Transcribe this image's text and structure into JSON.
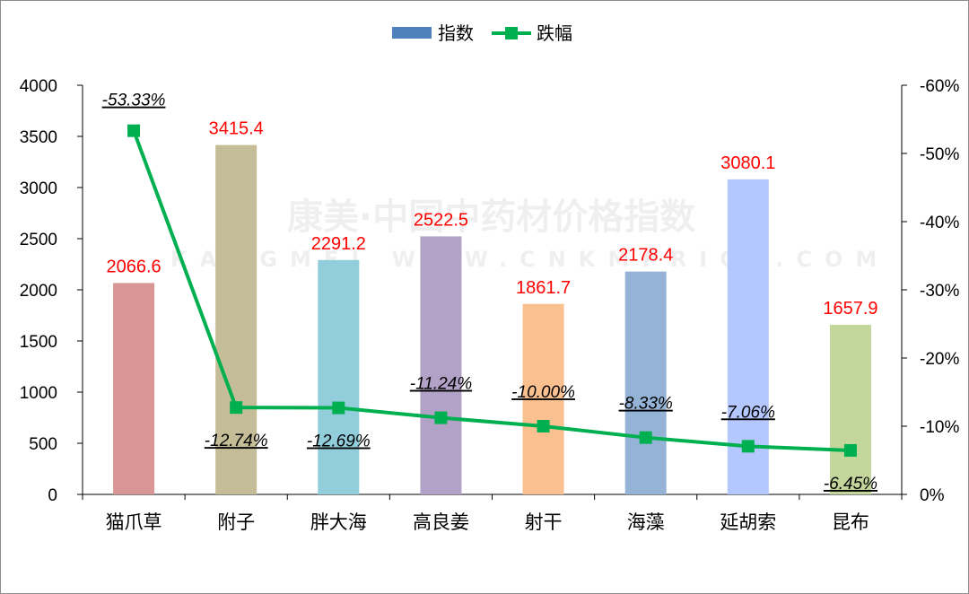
{
  "chart_data": {
    "type": "bar",
    "categories": [
      "猫爪草",
      "附子",
      "胖大海",
      "高良姜",
      "射干",
      "海藻",
      "延胡索",
      "昆布"
    ],
    "series": [
      {
        "name": "指数",
        "type": "bar",
        "axis": "left",
        "values": [
          2066.6,
          3415.4,
          2291.2,
          2522.5,
          1861.7,
          2178.4,
          3080.1,
          1657.9
        ],
        "labels": [
          "2066.6",
          "3415.4",
          "2291.2",
          "2522.5",
          "1861.7",
          "2178.4",
          "3080.1",
          "1657.9"
        ]
      },
      {
        "name": "跌幅",
        "type": "line",
        "axis": "right",
        "values": [
          -53.33,
          -12.74,
          -12.69,
          -11.24,
          -10.0,
          -8.33,
          -7.06,
          -6.45
        ],
        "labels": [
          "-53.33%",
          "-12.74%",
          "-12.69%",
          "-11.24%",
          "-10.00%",
          "-8.33%",
          "-7.06%",
          "-6.45%"
        ],
        "color": "#00b050"
      }
    ],
    "bar_colors": [
      "#d99694",
      "#c4bd97",
      "#92cddc",
      "#b3a2c7",
      "#fac090",
      "#95b3d7",
      "#b4c7ff",
      "#c3d69b"
    ],
    "y_left": {
      "min": 0,
      "max": 4000,
      "ticks": [
        "0",
        "500",
        "1000",
        "1500",
        "2000",
        "2500",
        "3000",
        "3500",
        "4000"
      ]
    },
    "y_right": {
      "min": 0,
      "max": -60,
      "ticks": [
        "0%",
        "-10%",
        "-20%",
        "-30%",
        "-40%",
        "-50%",
        "-60%"
      ]
    },
    "legend": {
      "placement": "top-center",
      "bar_color": "#4f81bd",
      "line_color": "#00b050"
    },
    "watermark": {
      "line1": "康美·中国中药材价格指数",
      "line2": "KANGMEI WWW.CNKMPRICE.COM"
    },
    "grid": false
  }
}
